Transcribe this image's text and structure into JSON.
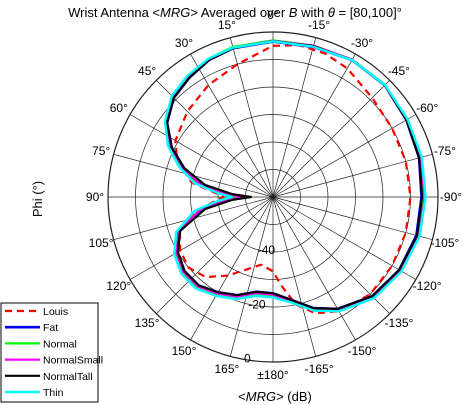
{
  "chart_data": {
    "type": "polar",
    "title": {
      "part1": "Wrist Antenna <",
      "mrg_italic": "MRG",
      "part2": "> Averaged over  ",
      "b_italic": "B",
      "part3": " with ",
      "theta_italic": "θ",
      "part4": " = [80,100]°"
    },
    "ylabel": "Phi (°)",
    "xlabel": {
      "part1": "<",
      "mrg_italic": "MRG",
      "part2": "> (dB)"
    },
    "angle_direction": "clockwise",
    "zero_location": "top",
    "angle_ticks": [
      {
        "deg": 0,
        "label": "0°"
      },
      {
        "deg": -15,
        "label": "-15°"
      },
      {
        "deg": -30,
        "label": "-30°"
      },
      {
        "deg": -45,
        "label": "-45°"
      },
      {
        "deg": -60,
        "label": "-60°"
      },
      {
        "deg": -75,
        "label": "-75°"
      },
      {
        "deg": -90,
        "label": "-90°"
      },
      {
        "deg": -105,
        "label": "-105°"
      },
      {
        "deg": -120,
        "label": "-120°"
      },
      {
        "deg": -135,
        "label": "-135°"
      },
      {
        "deg": -150,
        "label": "-150°"
      },
      {
        "deg": -165,
        "label": "-165°"
      },
      {
        "deg": 180,
        "label": "±180°"
      },
      {
        "deg": 165,
        "label": "165°"
      },
      {
        "deg": 150,
        "label": "150°"
      },
      {
        "deg": 135,
        "label": "135°"
      },
      {
        "deg": 120,
        "label": "120°"
      },
      {
        "deg": 105,
        "label": "105°"
      },
      {
        "deg": 90,
        "label": "90°"
      },
      {
        "deg": 75,
        "label": "75°"
      },
      {
        "deg": 60,
        "label": "60°"
      },
      {
        "deg": 45,
        "label": "45°"
      },
      {
        "deg": 30,
        "label": "30°"
      },
      {
        "deg": 15,
        "label": "15°"
      }
    ],
    "radial_ticks": [
      {
        "value": -40,
        "label": "-40"
      },
      {
        "value": -20,
        "label": "-20"
      },
      {
        "value": 0,
        "label": "0"
      }
    ],
    "rlim": [
      -60,
      0
    ],
    "grid": true,
    "legend_position": "bottom-left",
    "series": [
      {
        "name": "Louis",
        "color": "#ff0000",
        "style": "dashed",
        "width": 2.2,
        "points": [
          [
            0,
            -5
          ],
          [
            -10,
            -4
          ],
          [
            -20,
            -4.5
          ],
          [
            -30,
            -6
          ],
          [
            -45,
            -9
          ],
          [
            -60,
            -10
          ],
          [
            -75,
            -10
          ],
          [
            -90,
            -10
          ],
          [
            -105,
            -10
          ],
          [
            -120,
            -10
          ],
          [
            -135,
            -10
          ],
          [
            -150,
            -12
          ],
          [
            -160,
            -15
          ],
          [
            -168,
            -20
          ],
          [
            -175,
            -28
          ],
          [
            180,
            -33
          ],
          [
            170,
            -35
          ],
          [
            160,
            -32
          ],
          [
            150,
            -27
          ],
          [
            140,
            -22
          ],
          [
            130,
            -20
          ],
          [
            120,
            -21
          ],
          [
            110,
            -24
          ],
          [
            100,
            -32
          ],
          [
            94,
            -39
          ],
          [
            90,
            -42
          ],
          [
            85,
            -38
          ],
          [
            80,
            -30
          ],
          [
            70,
            -23
          ],
          [
            60,
            -19
          ],
          [
            45,
            -16
          ],
          [
            30,
            -13
          ],
          [
            15,
            -10
          ],
          [
            0,
            -5
          ]
        ]
      },
      {
        "name": "Fat",
        "color": "#0000ff",
        "style": "solid",
        "width": 2.6,
        "points": [
          [
            0,
            -3.5
          ],
          [
            -15,
            -3.5
          ],
          [
            -30,
            -2.5
          ],
          [
            -45,
            -2.5
          ],
          [
            -60,
            -4
          ],
          [
            -75,
            -5
          ],
          [
            -90,
            -6
          ],
          [
            -105,
            -6
          ],
          [
            -120,
            -7
          ],
          [
            -135,
            -9
          ],
          [
            -150,
            -13
          ],
          [
            -160,
            -17
          ],
          [
            -170,
            -22
          ],
          [
            180,
            -25
          ],
          [
            170,
            -25
          ],
          [
            160,
            -22
          ],
          [
            150,
            -20
          ],
          [
            140,
            -18
          ],
          [
            130,
            -18
          ],
          [
            120,
            -20
          ],
          [
            110,
            -24
          ],
          [
            100,
            -34
          ],
          [
            94,
            -44
          ],
          [
            90,
            -50
          ],
          [
            86,
            -44
          ],
          [
            80,
            -34
          ],
          [
            72,
            -26
          ],
          [
            64,
            -19
          ],
          [
            55,
            -13
          ],
          [
            45,
            -9
          ],
          [
            35,
            -7
          ],
          [
            25,
            -5
          ],
          [
            15,
            -4
          ],
          [
            0,
            -3.5
          ]
        ]
      },
      {
        "name": "Normal",
        "color": "#00ff00",
        "style": "solid",
        "width": 2.2,
        "points": [
          [
            0,
            -3
          ],
          [
            -15,
            -3
          ],
          [
            -30,
            -2.3
          ],
          [
            -45,
            -2.3
          ],
          [
            -60,
            -3.8
          ],
          [
            -75,
            -4.8
          ],
          [
            -90,
            -5.5
          ],
          [
            -105,
            -5.5
          ],
          [
            -120,
            -6.5
          ],
          [
            -135,
            -8.5
          ],
          [
            -150,
            -12.5
          ],
          [
            -160,
            -16.5
          ],
          [
            -170,
            -21.5
          ],
          [
            180,
            -24
          ],
          [
            170,
            -24
          ],
          [
            160,
            -21
          ],
          [
            150,
            -19
          ],
          [
            140,
            -17
          ],
          [
            130,
            -17
          ],
          [
            120,
            -19
          ],
          [
            110,
            -23
          ],
          [
            100,
            -33
          ],
          [
            94,
            -42
          ],
          [
            90,
            -48
          ],
          [
            86,
            -42
          ],
          [
            80,
            -32
          ],
          [
            72,
            -25
          ],
          [
            64,
            -18
          ],
          [
            55,
            -12
          ],
          [
            45,
            -8.5
          ],
          [
            35,
            -6.5
          ],
          [
            25,
            -4.5
          ],
          [
            15,
            -3.5
          ],
          [
            0,
            -3
          ]
        ]
      },
      {
        "name": "NormalSmall",
        "color": "#ff00ff",
        "style": "solid",
        "width": 2.2,
        "points": [
          [
            0,
            -3.2
          ],
          [
            -15,
            -3
          ],
          [
            -30,
            -2.3
          ],
          [
            -45,
            -2.5
          ],
          [
            -60,
            -4
          ],
          [
            -75,
            -4.5
          ],
          [
            -90,
            -4.8
          ],
          [
            -105,
            -5
          ],
          [
            -120,
            -6.5
          ],
          [
            -135,
            -8.5
          ],
          [
            -150,
            -12.5
          ],
          [
            -160,
            -16.5
          ],
          [
            -170,
            -21.5
          ],
          [
            180,
            -24.5
          ],
          [
            170,
            -24.5
          ],
          [
            160,
            -21.5
          ],
          [
            150,
            -19.5
          ],
          [
            140,
            -17.5
          ],
          [
            130,
            -17.5
          ],
          [
            120,
            -19.5
          ],
          [
            110,
            -23.5
          ],
          [
            100,
            -33
          ],
          [
            94,
            -43
          ],
          [
            90,
            -49
          ],
          [
            86,
            -43
          ],
          [
            80,
            -33
          ],
          [
            72,
            -25.5
          ],
          [
            64,
            -18.5
          ],
          [
            55,
            -12.5
          ],
          [
            45,
            -8.5
          ],
          [
            35,
            -6.5
          ],
          [
            25,
            -4.8
          ],
          [
            15,
            -3.8
          ],
          [
            0,
            -3.2
          ]
        ]
      },
      {
        "name": "NormalTall",
        "color": "#000000",
        "style": "solid",
        "width": 2.2,
        "points": [
          [
            0,
            -3.3
          ],
          [
            -15,
            -3.2
          ],
          [
            -30,
            -2.5
          ],
          [
            -45,
            -2.5
          ],
          [
            -60,
            -4
          ],
          [
            -75,
            -5
          ],
          [
            -90,
            -5.8
          ],
          [
            -105,
            -5.8
          ],
          [
            -120,
            -7
          ],
          [
            -135,
            -9
          ],
          [
            -150,
            -13
          ],
          [
            -160,
            -17
          ],
          [
            -170,
            -22
          ],
          [
            180,
            -25
          ],
          [
            170,
            -25
          ],
          [
            160,
            -22
          ],
          [
            150,
            -20
          ],
          [
            140,
            -18
          ],
          [
            130,
            -18
          ],
          [
            120,
            -20
          ],
          [
            110,
            -24
          ],
          [
            100,
            -35
          ],
          [
            94,
            -45
          ],
          [
            90,
            -52
          ],
          [
            86,
            -45
          ],
          [
            80,
            -35
          ],
          [
            72,
            -26
          ],
          [
            64,
            -19
          ],
          [
            55,
            -13
          ],
          [
            45,
            -9
          ],
          [
            35,
            -7
          ],
          [
            25,
            -5
          ],
          [
            15,
            -4
          ],
          [
            0,
            -3.3
          ]
        ]
      },
      {
        "name": "Thin",
        "color": "#00ffff",
        "style": "solid",
        "width": 2.4,
        "points": [
          [
            0,
            -3.4
          ],
          [
            -15,
            -3.4
          ],
          [
            -30,
            -2.5
          ],
          [
            -45,
            -2.4
          ],
          [
            -60,
            -3.5
          ],
          [
            -75,
            -4
          ],
          [
            -90,
            -4.5
          ],
          [
            -105,
            -4.8
          ],
          [
            -120,
            -6
          ],
          [
            -135,
            -8
          ],
          [
            -150,
            -12
          ],
          [
            -160,
            -16
          ],
          [
            -170,
            -21
          ],
          [
            180,
            -23.5
          ],
          [
            170,
            -23.5
          ],
          [
            160,
            -20.5
          ],
          [
            150,
            -18.5
          ],
          [
            140,
            -16.5
          ],
          [
            130,
            -16.5
          ],
          [
            120,
            -18.5
          ],
          [
            110,
            -22.5
          ],
          [
            100,
            -31
          ],
          [
            94,
            -40
          ],
          [
            90,
            -45
          ],
          [
            86,
            -40
          ],
          [
            80,
            -31
          ],
          [
            72,
            -24
          ],
          [
            64,
            -17.5
          ],
          [
            55,
            -12
          ],
          [
            45,
            -8
          ],
          [
            35,
            -6
          ],
          [
            25,
            -4.5
          ],
          [
            15,
            -3.8
          ],
          [
            0,
            -3.4
          ]
        ]
      }
    ]
  }
}
